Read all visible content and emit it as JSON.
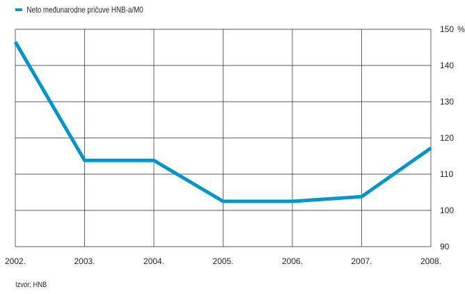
{
  "chart_data": {
    "type": "line",
    "title": "",
    "xlabel": "",
    "ylabel": "",
    "y_unit": "%",
    "categories": [
      "2002.",
      "2003.",
      "2004.",
      "2005.",
      "2006.",
      "2007.",
      "2008."
    ],
    "series": [
      {
        "name": "Neto međunarodne pričuve HNB-a/M0",
        "color": "#0096cc",
        "values": [
          146.5,
          113.8,
          113.8,
          102.5,
          102.5,
          103.8,
          117.2
        ]
      }
    ],
    "ylim": [
      90,
      150
    ],
    "yticks": [
      90,
      100,
      110,
      120,
      130,
      140,
      150
    ],
    "y_axis_side": "right",
    "grid": true,
    "legend": "top-left"
  },
  "source": "Izvor: HNB"
}
